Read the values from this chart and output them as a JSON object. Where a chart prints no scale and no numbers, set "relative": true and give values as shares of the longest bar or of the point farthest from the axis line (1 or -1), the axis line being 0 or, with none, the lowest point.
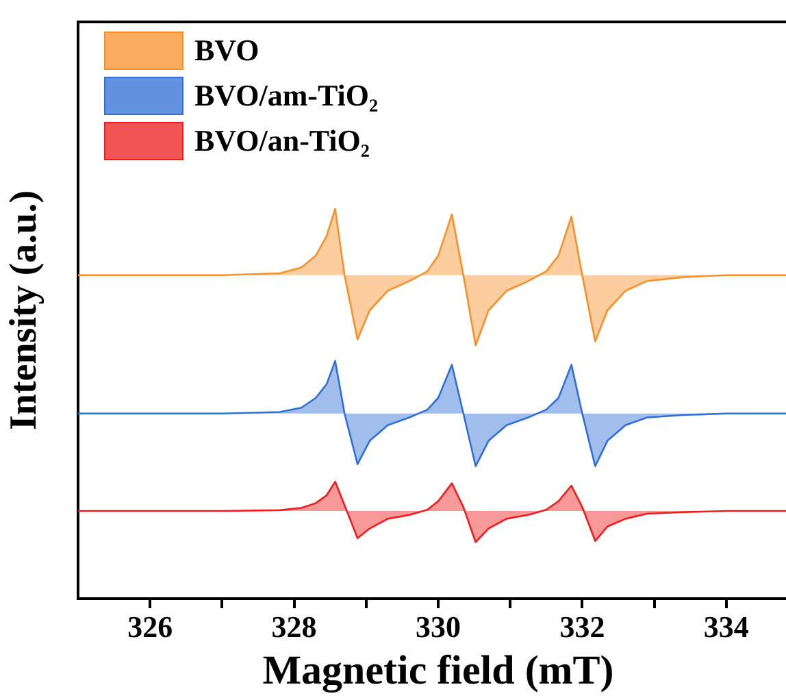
{
  "chart_data": {
    "type": "area",
    "relative": true,
    "xlabel": "Magnetic field (mT)",
    "ylabel": "Intensity (a.u.)",
    "xlim": [
      325,
      335
    ],
    "xticks": [
      326,
      {
        "value": 327,
        "label": null
      },
      328,
      {
        "value": 329,
        "label": null
      },
      330,
      {
        "value": 331,
        "label": null
      },
      332,
      {
        "value": 333,
        "label": null
      },
      334
    ],
    "tick_labels": "x",
    "grid": false,
    "legend": "top left",
    "x": [
      325,
      326,
      327,
      327.8,
      328.1,
      328.3,
      328.45,
      328.57,
      328.7,
      328.88,
      329.05,
      329.3,
      329.6,
      329.85,
      330.0,
      330.19,
      330.35,
      330.52,
      330.7,
      330.95,
      331.25,
      331.5,
      331.67,
      331.85,
      332.0,
      332.18,
      332.35,
      332.6,
      332.9,
      333.4,
      334,
      335
    ],
    "series": [
      {
        "name": "BVO",
        "color": "#f7902a",
        "values": [
          0.83,
          0.83,
          0.83,
          0.835,
          0.85,
          0.88,
          0.93,
          1.0,
          0.83,
          0.665,
          0.74,
          0.79,
          0.815,
          0.84,
          0.88,
          0.986,
          0.83,
          0.65,
          0.74,
          0.79,
          0.815,
          0.84,
          0.88,
          0.98,
          0.83,
          0.66,
          0.74,
          0.79,
          0.815,
          0.825,
          0.83,
          0.83
        ]
      },
      {
        "name": "BVO/am-TiO₂",
        "color": "#2f6fd6",
        "values": [
          0.475,
          0.475,
          0.475,
          0.479,
          0.49,
          0.515,
          0.55,
          0.61,
          0.475,
          0.345,
          0.405,
          0.445,
          0.465,
          0.485,
          0.515,
          0.6,
          0.475,
          0.34,
          0.405,
          0.445,
          0.465,
          0.485,
          0.515,
          0.6,
          0.475,
          0.34,
          0.405,
          0.445,
          0.465,
          0.471,
          0.475,
          0.475
        ]
      },
      {
        "name": "BVO/an-TiO₂",
        "color": "#ee1c1c",
        "values": [
          0.225,
          0.225,
          0.225,
          0.227,
          0.233,
          0.245,
          0.265,
          0.3,
          0.24,
          0.155,
          0.18,
          0.205,
          0.215,
          0.228,
          0.25,
          0.296,
          0.235,
          0.145,
          0.18,
          0.205,
          0.215,
          0.228,
          0.25,
          0.29,
          0.235,
          0.148,
          0.185,
          0.205,
          0.218,
          0.222,
          0.225,
          0.225
        ]
      }
    ]
  }
}
